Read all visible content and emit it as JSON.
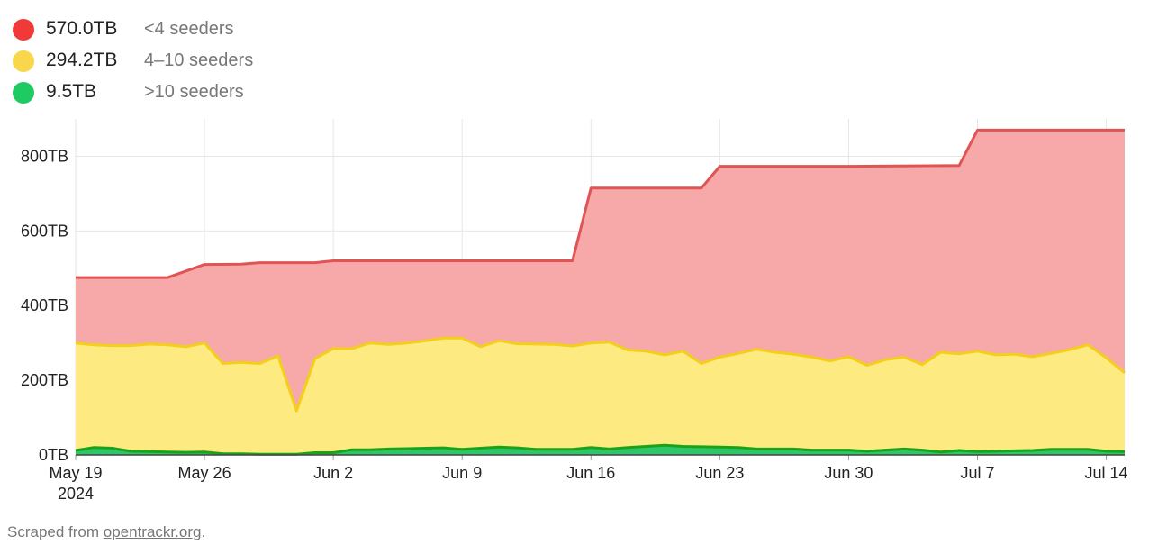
{
  "legend": [
    {
      "value": "570.0TB",
      "label": "<4 seeders",
      "color": "#f03a3a"
    },
    {
      "value": "294.2TB",
      "label": "4–10 seeders",
      "color": "#f9d74a"
    },
    {
      "value": "9.5TB",
      "label": ">10 seeders",
      "color": "#1ecb63"
    }
  ],
  "footer": {
    "prefix": "Scraped from ",
    "link": "opentrackr.org",
    "suffix": "."
  },
  "chart_data": {
    "type": "area",
    "stacked": false,
    "x_axis": {
      "type": "date",
      "range": [
        "2024-05-19",
        "2024-07-15"
      ],
      "ticks": [
        {
          "date": "2024-05-19",
          "label": "May 19",
          "sublabel": "2024"
        },
        {
          "date": "2024-05-26",
          "label": "May 26"
        },
        {
          "date": "2024-06-02",
          "label": "Jun 2"
        },
        {
          "date": "2024-06-09",
          "label": "Jun 9"
        },
        {
          "date": "2024-06-16",
          "label": "Jun 16"
        },
        {
          "date": "2024-06-23",
          "label": "Jun 23"
        },
        {
          "date": "2024-06-30",
          "label": "Jun 30"
        },
        {
          "date": "2024-07-07",
          "label": "Jul 7"
        },
        {
          "date": "2024-07-14",
          "label": "Jul 14"
        }
      ]
    },
    "y_axis": {
      "range": [
        0,
        900
      ],
      "unit": "TB",
      "ticks": [
        {
          "value": 0,
          "label": "0TB"
        },
        {
          "value": 200,
          "label": "200TB"
        },
        {
          "value": 400,
          "label": "400TB"
        },
        {
          "value": 600,
          "label": "600TB"
        },
        {
          "value": 800,
          "label": "800TB"
        }
      ]
    },
    "grid": true,
    "series": [
      {
        "label": "<4 seeders",
        "line_color": "#e05454",
        "fill_color": "#f7a8a8",
        "points": [
          [
            "2024-05-19",
            475
          ],
          [
            "2024-05-24",
            475
          ],
          [
            "2024-05-26",
            510
          ],
          [
            "2024-05-28",
            511
          ],
          [
            "2024-05-29",
            515
          ],
          [
            "2024-06-01",
            515
          ],
          [
            "2024-06-02",
            520
          ],
          [
            "2024-06-08",
            520
          ],
          [
            "2024-06-14",
            520
          ],
          [
            "2024-06-15",
            520
          ],
          [
            "2024-06-16",
            715
          ],
          [
            "2024-06-22",
            715
          ],
          [
            "2024-06-23",
            773
          ],
          [
            "2024-06-30",
            773
          ],
          [
            "2024-07-06",
            775
          ],
          [
            "2024-07-07",
            870
          ],
          [
            "2024-07-15",
            870
          ]
        ]
      },
      {
        "label": "4–10 seeders",
        "line_color": "#f3cf1a",
        "fill_color": "#fdea80",
        "points": [
          [
            "2024-05-19",
            300
          ],
          [
            "2024-05-20",
            295
          ],
          [
            "2024-05-21",
            293
          ],
          [
            "2024-05-22",
            293
          ],
          [
            "2024-05-23",
            297
          ],
          [
            "2024-05-24",
            295
          ],
          [
            "2024-05-25",
            290
          ],
          [
            "2024-05-26",
            300
          ],
          [
            "2024-05-27",
            245
          ],
          [
            "2024-05-28",
            248
          ],
          [
            "2024-05-29",
            245
          ],
          [
            "2024-05-30",
            265
          ],
          [
            "2024-05-31",
            118
          ],
          [
            "2024-06-01",
            258
          ],
          [
            "2024-06-02",
            285
          ],
          [
            "2024-06-03",
            285
          ],
          [
            "2024-06-04",
            300
          ],
          [
            "2024-06-05",
            296
          ],
          [
            "2024-06-06",
            300
          ],
          [
            "2024-06-07",
            306
          ],
          [
            "2024-06-08",
            313
          ],
          [
            "2024-06-09",
            313
          ],
          [
            "2024-06-10",
            290
          ],
          [
            "2024-06-11",
            306
          ],
          [
            "2024-06-12",
            298
          ],
          [
            "2024-06-13",
            297
          ],
          [
            "2024-06-14",
            296
          ],
          [
            "2024-06-15",
            292
          ],
          [
            "2024-06-16",
            300
          ],
          [
            "2024-06-17",
            302
          ],
          [
            "2024-06-18",
            281
          ],
          [
            "2024-06-19",
            278
          ],
          [
            "2024-06-20",
            268
          ],
          [
            "2024-06-21",
            278
          ],
          [
            "2024-06-22",
            245
          ],
          [
            "2024-06-23",
            262
          ],
          [
            "2024-06-24",
            272
          ],
          [
            "2024-06-25",
            283
          ],
          [
            "2024-06-26",
            275
          ],
          [
            "2024-06-27",
            270
          ],
          [
            "2024-06-28",
            262
          ],
          [
            "2024-06-29",
            252
          ],
          [
            "2024-06-30",
            263
          ],
          [
            "2024-07-01",
            240
          ],
          [
            "2024-07-02",
            255
          ],
          [
            "2024-07-03",
            262
          ],
          [
            "2024-07-04",
            242
          ],
          [
            "2024-07-05",
            275
          ],
          [
            "2024-07-06",
            271
          ],
          [
            "2024-07-07",
            278
          ],
          [
            "2024-07-08",
            268
          ],
          [
            "2024-07-09",
            270
          ],
          [
            "2024-07-10",
            263
          ],
          [
            "2024-07-11",
            272
          ],
          [
            "2024-07-12",
            282
          ],
          [
            "2024-07-13",
            295
          ],
          [
            "2024-07-14",
            260
          ],
          [
            "2024-07-15",
            220
          ]
        ]
      },
      {
        "label": ">10 seeders",
        "line_color": "#1aa31a",
        "fill_color": "#2fc66a",
        "points": [
          [
            "2024-05-19",
            12
          ],
          [
            "2024-05-20",
            20
          ],
          [
            "2024-05-21",
            18
          ],
          [
            "2024-05-22",
            10
          ],
          [
            "2024-05-23",
            9
          ],
          [
            "2024-05-24",
            8
          ],
          [
            "2024-05-25",
            7
          ],
          [
            "2024-05-26",
            8
          ],
          [
            "2024-05-27",
            3
          ],
          [
            "2024-05-28",
            3
          ],
          [
            "2024-05-29",
            2
          ],
          [
            "2024-05-30",
            2
          ],
          [
            "2024-05-31",
            2
          ],
          [
            "2024-06-01",
            6
          ],
          [
            "2024-06-02",
            6
          ],
          [
            "2024-06-03",
            14
          ],
          [
            "2024-06-04",
            14
          ],
          [
            "2024-06-05",
            16
          ],
          [
            "2024-06-06",
            17
          ],
          [
            "2024-06-07",
            18
          ],
          [
            "2024-06-08",
            19
          ],
          [
            "2024-06-09",
            15
          ],
          [
            "2024-06-10",
            18
          ],
          [
            "2024-06-11",
            21
          ],
          [
            "2024-06-12",
            19
          ],
          [
            "2024-06-13",
            15
          ],
          [
            "2024-06-14",
            15
          ],
          [
            "2024-06-15",
            15
          ],
          [
            "2024-06-16",
            20
          ],
          [
            "2024-06-17",
            16
          ],
          [
            "2024-06-18",
            20
          ],
          [
            "2024-06-19",
            23
          ],
          [
            "2024-06-20",
            26
          ],
          [
            "2024-06-21",
            23
          ],
          [
            "2024-06-22",
            22
          ],
          [
            "2024-06-23",
            21
          ],
          [
            "2024-06-24",
            20
          ],
          [
            "2024-06-25",
            16
          ],
          [
            "2024-06-26",
            16
          ],
          [
            "2024-06-27",
            16
          ],
          [
            "2024-06-28",
            13
          ],
          [
            "2024-06-29",
            13
          ],
          [
            "2024-06-30",
            13
          ],
          [
            "2024-07-01",
            10
          ],
          [
            "2024-07-02",
            13
          ],
          [
            "2024-07-03",
            16
          ],
          [
            "2024-07-04",
            13
          ],
          [
            "2024-07-05",
            8
          ],
          [
            "2024-07-06",
            12
          ],
          [
            "2024-07-07",
            9
          ],
          [
            "2024-07-08",
            10
          ],
          [
            "2024-07-09",
            11
          ],
          [
            "2024-07-10",
            12
          ],
          [
            "2024-07-11",
            15
          ],
          [
            "2024-07-12",
            15
          ],
          [
            "2024-07-13",
            15
          ],
          [
            "2024-07-14",
            10
          ],
          [
            "2024-07-15",
            9
          ]
        ]
      }
    ]
  }
}
